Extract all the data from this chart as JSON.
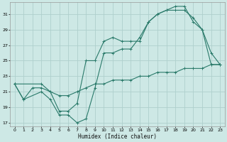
{
  "xlabel": "Humidex (Indice chaleur)",
  "bg_color": "#cde8e5",
  "grid_color": "#aed0cd",
  "line_color": "#2a7a6a",
  "xlim": [
    -0.5,
    23.5
  ],
  "ylim": [
    16.5,
    32.5
  ],
  "xticks": [
    0,
    1,
    2,
    3,
    4,
    5,
    6,
    7,
    8,
    9,
    10,
    11,
    12,
    13,
    14,
    15,
    16,
    17,
    18,
    19,
    20,
    21,
    22,
    23
  ],
  "yticks": [
    17,
    19,
    21,
    23,
    25,
    27,
    29,
    31
  ],
  "line1_x": [
    0,
    1,
    2,
    3,
    4,
    5,
    6,
    7,
    8,
    9,
    10,
    11,
    12,
    13,
    14,
    15,
    16,
    17,
    18,
    19,
    20,
    21,
    22,
    23
  ],
  "line1_y": [
    22,
    20,
    21.5,
    21.5,
    21,
    20.5,
    20.5,
    21,
    21.5,
    22,
    22,
    22.5,
    22.5,
    22.5,
    23,
    23,
    23.5,
    23.5,
    23.5,
    24,
    24,
    24,
    24.5,
    24.5
  ],
  "line2_x": [
    0,
    1,
    3,
    4,
    5,
    6,
    7,
    8,
    9,
    10,
    11,
    12,
    13,
    14,
    15,
    16,
    17,
    18,
    19,
    20,
    21,
    22,
    23
  ],
  "line2_y": [
    22,
    20,
    21,
    20,
    18,
    18,
    17,
    17.5,
    21.5,
    26,
    26,
    26.5,
    26.5,
    28,
    30,
    31,
    31.5,
    32,
    32,
    30,
    29,
    24.5,
    24.5
  ],
  "line3_x": [
    0,
    3,
    4,
    5,
    6,
    7,
    8,
    9,
    10,
    11,
    12,
    13,
    14,
    15,
    16,
    17,
    18,
    19,
    20,
    21,
    22,
    23
  ],
  "line3_y": [
    22,
    22,
    21,
    18.5,
    18.5,
    19.5,
    25,
    25,
    27.5,
    28,
    27.5,
    27.5,
    27.5,
    30,
    31,
    31.5,
    31.5,
    31.5,
    30.5,
    29,
    26,
    24.5
  ]
}
